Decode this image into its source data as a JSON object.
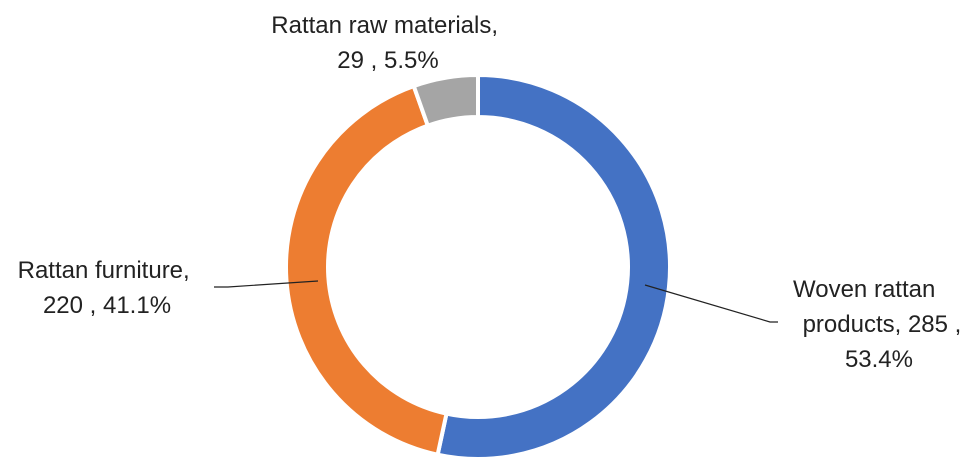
{
  "chart_data": {
    "type": "pie",
    "variant": "donut",
    "title": "",
    "series": [
      {
        "categories": [
          "Woven rattan products",
          "Rattan furniture",
          "Rattan raw materials"
        ],
        "values": [
          285,
          220,
          29
        ],
        "percent_labels": [
          "53.4%",
          "41.1%",
          "5.5%"
        ],
        "colors": [
          "#4472C4",
          "#ED7D31",
          "#A5A5A5"
        ]
      }
    ],
    "labels": [
      {
        "lines": [
          "Woven rattan",
          "products,  285 ,",
          "53.4%"
        ]
      },
      {
        "lines": [
          "Rattan furniture,",
          "220 , 41.1%"
        ]
      },
      {
        "lines": [
          "Rattan raw materials,",
          "29 , 5.5%"
        ]
      }
    ],
    "legend": "none"
  }
}
